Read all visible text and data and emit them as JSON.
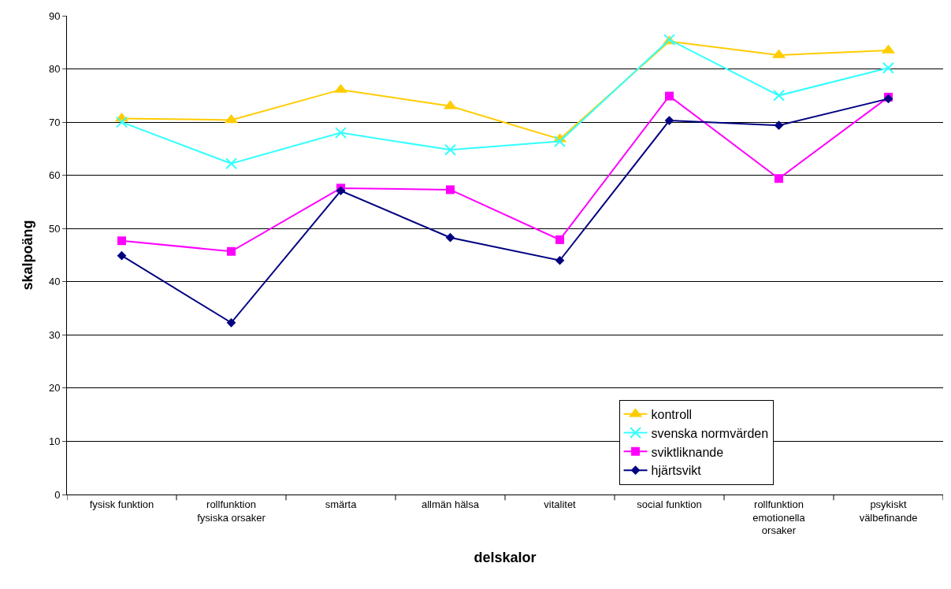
{
  "chart_data": {
    "type": "line",
    "xlabel": "delskalor",
    "ylabel": "skalpoäng",
    "categories": [
      "fysisk funktion",
      "rollfunktion\nfysiska orsaker",
      "smärta",
      "allmän hälsa",
      "vitalitet",
      "social funktion",
      "rollfunktion\nemotionella\norsaker",
      "psykiskt\nvälbefinande"
    ],
    "series": [
      {
        "name": "kontroll",
        "color": "#ffcc00",
        "marker": "triangle",
        "values": [
          70.7,
          70.4,
          76.1,
          73.0,
          66.8,
          85.2,
          82.6,
          83.5
        ]
      },
      {
        "name": "svenska normvärden",
        "color": "#33ffff",
        "marker": "cross",
        "values": [
          70.0,
          62.2,
          68.0,
          64.8,
          66.4,
          85.5,
          75.0,
          80.2
        ]
      },
      {
        "name": "sviktliknande",
        "color": "#ff00ff",
        "marker": "square",
        "values": [
          47.7,
          45.7,
          57.6,
          57.3,
          47.9,
          74.9,
          59.4,
          74.7
        ]
      },
      {
        "name": "hjärtsvikt",
        "color": "#000080",
        "marker": "diamond",
        "values": [
          44.9,
          32.3,
          57.1,
          48.3,
          44.0,
          70.3,
          69.4,
          74.4
        ]
      }
    ],
    "ylim": [
      0,
      90
    ],
    "yticks": [
      0,
      10,
      20,
      30,
      40,
      50,
      60,
      70,
      80,
      90
    ],
    "grid": "y",
    "legend": "bottom right"
  }
}
